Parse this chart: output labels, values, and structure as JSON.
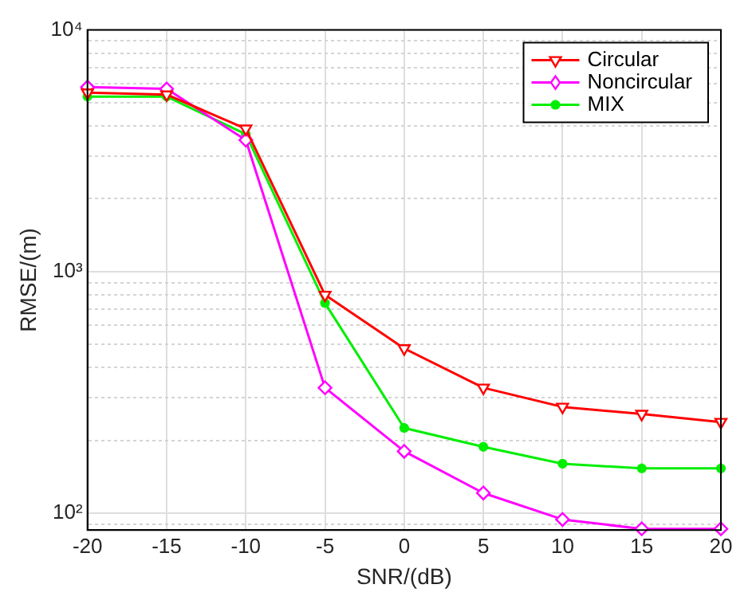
{
  "chart_data": {
    "type": "line",
    "xlabel": "SNR/(dB)",
    "ylabel": "RMSE/(m)",
    "x": [
      -20,
      -15,
      -10,
      -5,
      0,
      5,
      10,
      15,
      20
    ],
    "series": [
      {
        "name": "Circular",
        "color": "#ff0000",
        "marker": "triangle",
        "values": [
          5500,
          5400,
          3900,
          800,
          480,
          330,
          275,
          257,
          238
        ]
      },
      {
        "name": "Noncircular",
        "color": "#ff00ff",
        "marker": "diamond",
        "values": [
          5800,
          5700,
          3500,
          330,
          180,
          121,
          94,
          86,
          86
        ]
      },
      {
        "name": "MIX",
        "color": "#00ee00",
        "marker": "cross",
        "values": [
          5300,
          5300,
          3700,
          740,
          225,
          188,
          160,
          153,
          153
        ]
      }
    ],
    "xlim": [
      -20,
      20
    ],
    "xticks": [
      -20,
      -15,
      -10,
      -5,
      0,
      5,
      10,
      15,
      20
    ],
    "ylim": [
      85,
      10000
    ],
    "yticks": [
      {
        "value": 90,
        "label": null
      },
      {
        "value": 100,
        "label": "10²"
      },
      {
        "value": 200,
        "label": null
      },
      {
        "value": 300,
        "label": null
      },
      {
        "value": 400,
        "label": null
      },
      {
        "value": 500,
        "label": null
      },
      {
        "value": 600,
        "label": null
      },
      {
        "value": 700,
        "label": null
      },
      {
        "value": 800,
        "label": null
      },
      {
        "value": 900,
        "label": null
      },
      {
        "value": 1000,
        "label": "10³"
      },
      {
        "value": 2000,
        "label": null
      },
      {
        "value": 3000,
        "label": null
      },
      {
        "value": 4000,
        "label": null
      },
      {
        "value": 5000,
        "label": null
      },
      {
        "value": 6000,
        "label": null
      },
      {
        "value": 7000,
        "label": null
      },
      {
        "value": 8000,
        "label": null
      },
      {
        "value": 9000,
        "label": null
      },
      {
        "value": 10000,
        "label": "10⁴"
      }
    ],
    "log": "y",
    "grid": true,
    "legend": "top right",
    "line_style": "solid"
  }
}
